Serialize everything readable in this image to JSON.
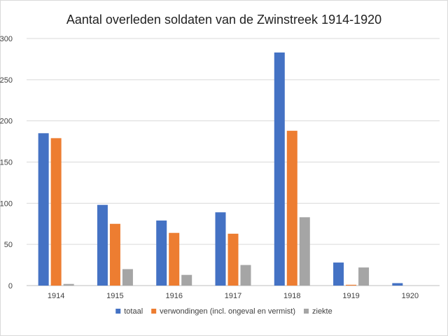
{
  "chart_data": {
    "type": "bar",
    "title": "Aantal overleden soldaten van de Zwinstreek 1914-1920",
    "xlabel": "",
    "ylabel": "",
    "categories": [
      "1914",
      "1915",
      "1916",
      "1917",
      "1918",
      "1919",
      "1920"
    ],
    "series": [
      {
        "name": "totaal",
        "color": "#4472c4",
        "values": [
          185,
          98,
          79,
          89,
          283,
          28,
          3
        ]
      },
      {
        "name": "verwondingen (incl. ongeval en vermist)",
        "color": "#ed7d31",
        "values": [
          179,
          75,
          64,
          63,
          188,
          1,
          0
        ]
      },
      {
        "name": "ziekte",
        "color": "#a5a5a5",
        "values": [
          2,
          20,
          13,
          25,
          83,
          22,
          0
        ]
      }
    ],
    "ylim": [
      0,
      300
    ],
    "yticks": [
      0,
      50,
      100,
      150,
      200,
      250,
      300
    ],
    "grid": true,
    "legend": "bottom"
  }
}
